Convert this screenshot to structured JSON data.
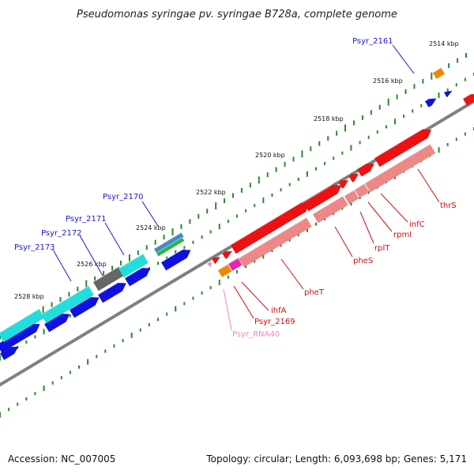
{
  "title": "Pseudomonas syringae pv. syringae B728a, complete genome",
  "footer": {
    "accession": "Accession: NC_007005",
    "summary": "Topology: circular; Length: 6,093,698 bp; Genes: 5,171"
  },
  "kbp_ticks": [
    "2514 kbp",
    "2516 kbp",
    "2518 kbp",
    "2520 kbp",
    "2522 kbp",
    "2524 kbp",
    "2526 kbp",
    "2528 kbp"
  ],
  "labels": {
    "left": [
      "Psyr_2161",
      "Psyr_2170",
      "Psyr_2171",
      "Psyr_2172",
      "Psyr_2173"
    ],
    "right": [
      "thrS",
      "infC",
      "rpmI",
      "rplT",
      "pheS",
      "pheT",
      "ihfA",
      "Psyr_2169",
      "Psyr_RNA40"
    ]
  },
  "colors": {
    "left_label": "#1a1acc",
    "right_label": "#cc1111",
    "rna_label": "#ee88bb",
    "gene_blue": "#1010e0",
    "gene_cyan": "#22dddd",
    "gene_red": "#ee1111",
    "gene_pink": "#ee8888",
    "backbone": "#808080",
    "tick": "#2a8a2a"
  }
}
